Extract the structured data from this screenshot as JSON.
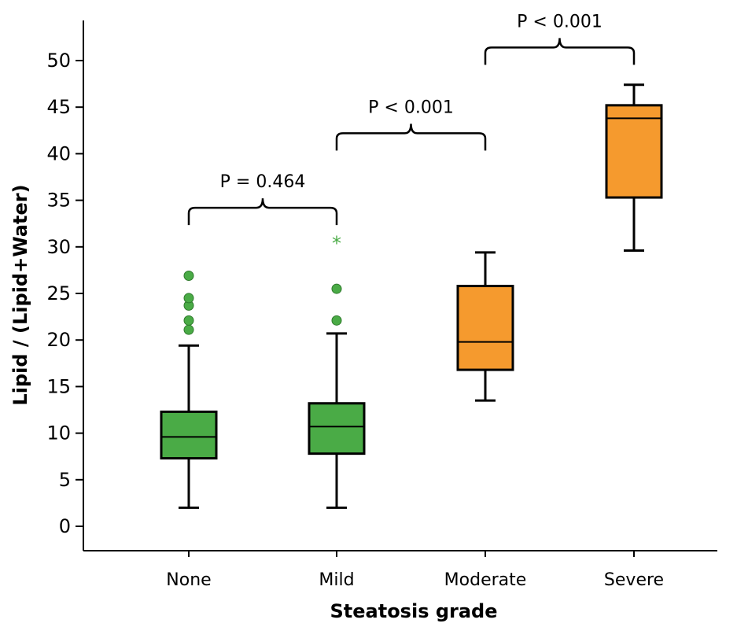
{
  "chart_data": {
    "type": "box",
    "xlabel": "Steatosis grade",
    "ylabel": "Lipid / (Lipid+Water)",
    "ylim": [
      0,
      50
    ],
    "yticks": [
      0,
      5,
      10,
      15,
      20,
      25,
      30,
      35,
      40,
      45,
      50
    ],
    "categories": [
      "None",
      "Mild",
      "Moderate",
      "Severe"
    ],
    "boxes": [
      {
        "category": "None",
        "min": 2.0,
        "q1": 7.3,
        "median": 9.6,
        "q3": 12.3,
        "max": 19.4,
        "outliers": [
          21.1,
          22.1,
          23.7,
          24.5,
          26.9
        ],
        "extremes": [],
        "color": "#4aab46"
      },
      {
        "category": "Mild",
        "min": 2.0,
        "q1": 7.8,
        "median": 10.7,
        "q3": 13.2,
        "max": 20.7,
        "outliers": [
          22.1,
          25.5
        ],
        "extremes": [
          30.6
        ],
        "color": "#4aab46"
      },
      {
        "category": "Moderate",
        "min": 13.5,
        "q1": 16.8,
        "median": 19.8,
        "q3": 25.8,
        "max": 29.4,
        "outliers": [],
        "extremes": [],
        "color": "#f59a2e"
      },
      {
        "category": "Severe",
        "min": 29.6,
        "q1": 35.3,
        "median": 43.8,
        "q3": 45.2,
        "max": 47.4,
        "outliers": [],
        "extremes": [],
        "color": "#f59a2e"
      }
    ],
    "comparisons": [
      {
        "from": "None",
        "to": "Mild",
        "label": "P = 0.464",
        "y": 34.2
      },
      {
        "from": "Mild",
        "to": "Moderate",
        "label": "P < 0.001",
        "y": 42.2
      },
      {
        "from": "Moderate",
        "to": "Severe",
        "label": "P < 0.001",
        "y": 51.4
      }
    ]
  }
}
